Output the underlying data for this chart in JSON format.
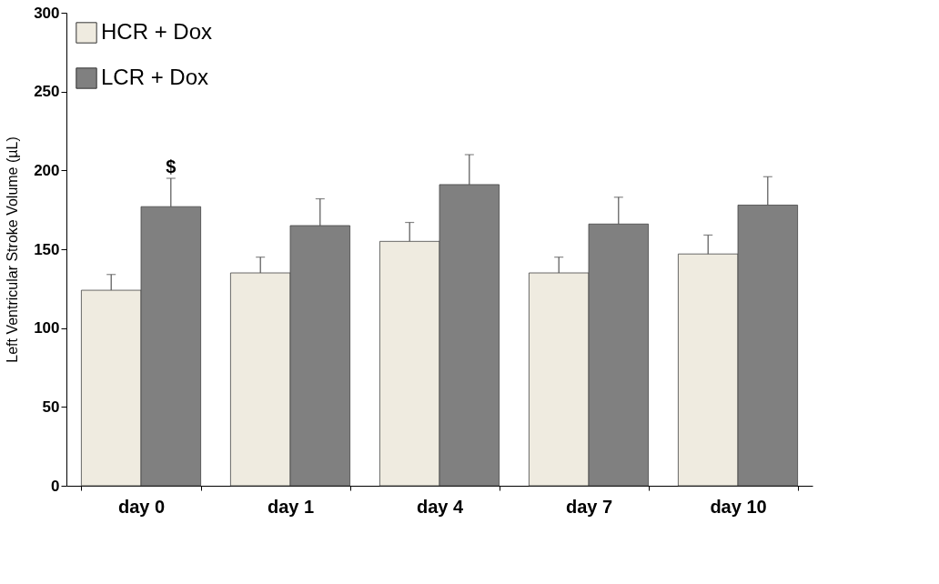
{
  "chart_data": {
    "type": "bar",
    "ylabel": "Left Ventricular Stroke Volume (µL)",
    "categories": [
      "day 0",
      "day 1",
      "day 4",
      "day 7",
      "day 10"
    ],
    "series": [
      {
        "name": "HCR + Dox",
        "color": "#efebe0",
        "values": [
          124,
          135,
          155,
          135,
          147
        ],
        "errors": [
          [
            124,
            134
          ],
          [
            135,
            145
          ],
          [
            155,
            167
          ],
          [
            135,
            145
          ],
          [
            147,
            159
          ]
        ]
      },
      {
        "name": "LCR + Dox",
        "color": "#808080",
        "values": [
          177,
          165,
          191,
          166,
          178
        ],
        "errors": [
          [
            177,
            195
          ],
          [
            165,
            182
          ],
          [
            191,
            210
          ],
          [
            166,
            183
          ],
          [
            178,
            196
          ]
        ]
      }
    ],
    "ylim": [
      0,
      300
    ],
    "yticks": [
      0,
      50,
      100,
      150,
      200,
      250,
      300
    ],
    "annotations": [
      "$"
    ],
    "legend": "top left",
    "grid": false
  }
}
